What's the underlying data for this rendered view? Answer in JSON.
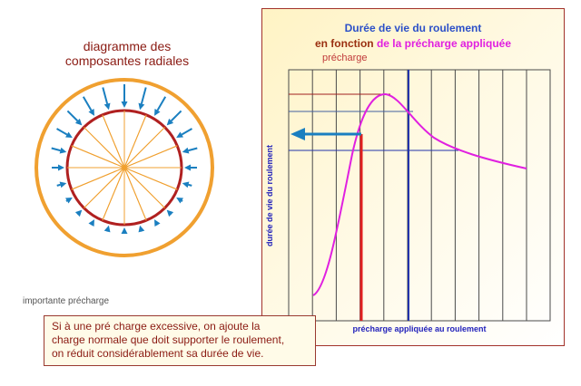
{
  "radial": {
    "title_line1": "diagramme des",
    "title_line2": "composantes radiales",
    "caption": "importante précharge",
    "colors": {
      "outer_ring": "#f0a030",
      "inner_ring": "#b02020",
      "spokes": "#f0a030",
      "arrows": "#1a7fc0"
    }
  },
  "graph": {
    "title": "Durée de vie du roulement",
    "subtitle_a": "en fonction",
    "subtitle_b": "de la précharge appliquée",
    "precharge_label": "précharge",
    "x_label": "précharge appliquée au roulement",
    "y_label": "durée de vie du roulement",
    "colors": {
      "curve": "#e020e0",
      "grid": "#4a4a4a",
      "red_line": "#e02020",
      "blue_line": "#2233aa",
      "arrow": "#1a7fc0"
    }
  },
  "note": {
    "line1": "Si à une pré charge excessive, on ajoute la",
    "line2": "charge normale que doit supporter le roulement,",
    "line3": "on réduit considérablement sa durée de vie."
  }
}
